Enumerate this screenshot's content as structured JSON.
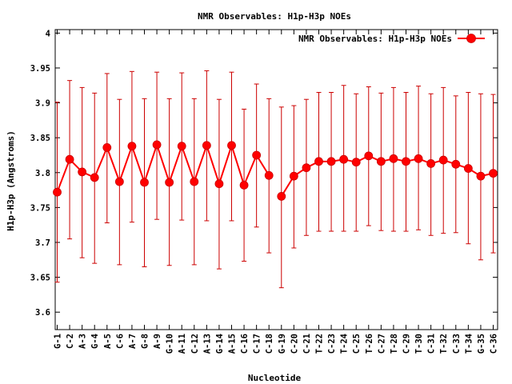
{
  "colors": {
    "series": "#ff0000",
    "errorbar": "#cc0000",
    "axis": "#000000"
  },
  "chart_data": {
    "type": "line",
    "title": "NMR Observables: H1p-H3p NOEs",
    "xlabel": "Nucleotide",
    "ylabel": "H1p-H3p (Angstroms)",
    "ylim": [
      3.575,
      4.005
    ],
    "yticks": [
      3.6,
      3.65,
      3.7,
      3.75,
      3.8,
      3.85,
      3.9,
      3.95,
      4
    ],
    "ytick_labels": [
      "3.6",
      "3.65",
      "3.7",
      "3.75",
      "3.8",
      "3.85",
      "3.9",
      "3.95",
      "4"
    ],
    "grid": false,
    "legend_position": "top-right",
    "categories": [
      "G-1",
      "C-2",
      "A-3",
      "G-4",
      "A-5",
      "C-6",
      "A-7",
      "G-8",
      "A-9",
      "G-10",
      "A-11",
      "C-12",
      "A-13",
      "G-14",
      "A-15",
      "C-16",
      "C-17",
      "C-18",
      "G-19",
      "C-20",
      "C-21",
      "T-22",
      "C-23",
      "T-24",
      "C-25",
      "T-26",
      "C-27",
      "T-28",
      "C-29",
      "T-30",
      "C-31",
      "T-32",
      "C-33",
      "T-34",
      "G-35",
      "C-36"
    ],
    "series": [
      {
        "name": "NMR Observables: H1p-H3p NOEs",
        "segments": [
          [
            0,
            17
          ],
          [
            18,
            35
          ]
        ],
        "values": [
          3.772,
          3.819,
          3.801,
          3.793,
          3.836,
          3.787,
          3.838,
          3.786,
          3.84,
          3.786,
          3.838,
          3.787,
          3.839,
          3.784,
          3.839,
          3.782,
          3.825,
          3.796,
          3.766,
          3.795,
          3.807,
          3.816,
          3.816,
          3.819,
          3.815,
          3.824,
          3.816,
          3.82,
          3.816,
          3.82,
          3.813,
          3.818,
          3.812,
          3.806,
          3.795,
          3.799
        ],
        "err_low": [
          3.643,
          3.705,
          3.678,
          3.67,
          3.728,
          3.668,
          3.729,
          3.665,
          3.733,
          3.667,
          3.732,
          3.668,
          3.731,
          3.662,
          3.731,
          3.673,
          3.722,
          3.685,
          3.635,
          3.692,
          3.71,
          3.716,
          3.716,
          3.716,
          3.716,
          3.724,
          3.717,
          3.716,
          3.716,
          3.718,
          3.71,
          3.713,
          3.714,
          3.698,
          3.675,
          3.685
        ],
        "err_high": [
          3.901,
          3.932,
          3.922,
          3.914,
          3.942,
          3.905,
          3.945,
          3.906,
          3.944,
          3.906,
          3.943,
          3.906,
          3.946,
          3.905,
          3.944,
          3.891,
          3.927,
          3.906,
          3.894,
          3.896,
          3.905,
          3.915,
          3.915,
          3.925,
          3.913,
          3.923,
          3.914,
          3.922,
          3.915,
          3.924,
          3.913,
          3.922,
          3.91,
          3.915,
          3.913,
          3.912
        ]
      }
    ]
  }
}
